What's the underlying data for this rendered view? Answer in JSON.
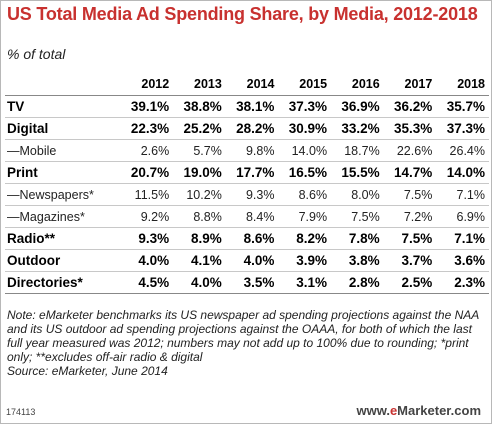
{
  "chart_data": {
    "type": "table",
    "title": "US Total Media Ad Spending Share, by Media, 2012-2018",
    "subtitle": "% of total",
    "columns": [
      "2012",
      "2013",
      "2014",
      "2015",
      "2016",
      "2017",
      "2018"
    ],
    "rows": [
      {
        "label": "TV",
        "style": "major",
        "values": [
          "39.1%",
          "38.8%",
          "38.1%",
          "37.3%",
          "36.9%",
          "36.2%",
          "35.7%"
        ]
      },
      {
        "label": "Digital",
        "style": "major",
        "values": [
          "22.3%",
          "25.2%",
          "28.2%",
          "30.9%",
          "33.2%",
          "35.3%",
          "37.3%"
        ]
      },
      {
        "label": "—Mobile",
        "style": "minor",
        "values": [
          "2.6%",
          "5.7%",
          "9.8%",
          "14.0%",
          "18.7%",
          "22.6%",
          "26.4%"
        ]
      },
      {
        "label": "Print",
        "style": "major",
        "values": [
          "20.7%",
          "19.0%",
          "17.7%",
          "16.5%",
          "15.5%",
          "14.7%",
          "14.0%"
        ]
      },
      {
        "label": "—Newspapers*",
        "style": "minor",
        "values": [
          "11.5%",
          "10.2%",
          "9.3%",
          "8.6%",
          "8.0%",
          "7.5%",
          "7.1%"
        ]
      },
      {
        "label": "—Magazines*",
        "style": "minor",
        "values": [
          "9.2%",
          "8.8%",
          "8.4%",
          "7.9%",
          "7.5%",
          "7.2%",
          "6.9%"
        ]
      },
      {
        "label": "Radio**",
        "style": "major",
        "values": [
          "9.3%",
          "8.9%",
          "8.6%",
          "8.2%",
          "7.8%",
          "7.5%",
          "7.1%"
        ]
      },
      {
        "label": "Outdoor",
        "style": "major",
        "values": [
          "4.0%",
          "4.1%",
          "4.0%",
          "3.9%",
          "3.8%",
          "3.7%",
          "3.6%"
        ]
      },
      {
        "label": "Directories*",
        "style": "major",
        "values": [
          "4.5%",
          "4.0%",
          "3.5%",
          "3.1%",
          "2.8%",
          "2.5%",
          "2.3%"
        ]
      }
    ]
  },
  "note": "Note: eMarketer benchmarks its US newspaper ad spending projections against the NAA and its US outdoor ad spending projections against the OAAA, for both of which the last full year measured was 2012; numbers may not add up to 100% due to rounding; *print only; **excludes off-air radio & digital",
  "source": "Source: eMarketer, June 2014",
  "chart_id": "174113",
  "logo": {
    "prefix": "www.",
    "brand_e": "e",
    "brand_rest": "Marketer",
    "suffix": ".com"
  },
  "colors": {
    "title": "#c8312f",
    "brand": "#c8312f"
  }
}
